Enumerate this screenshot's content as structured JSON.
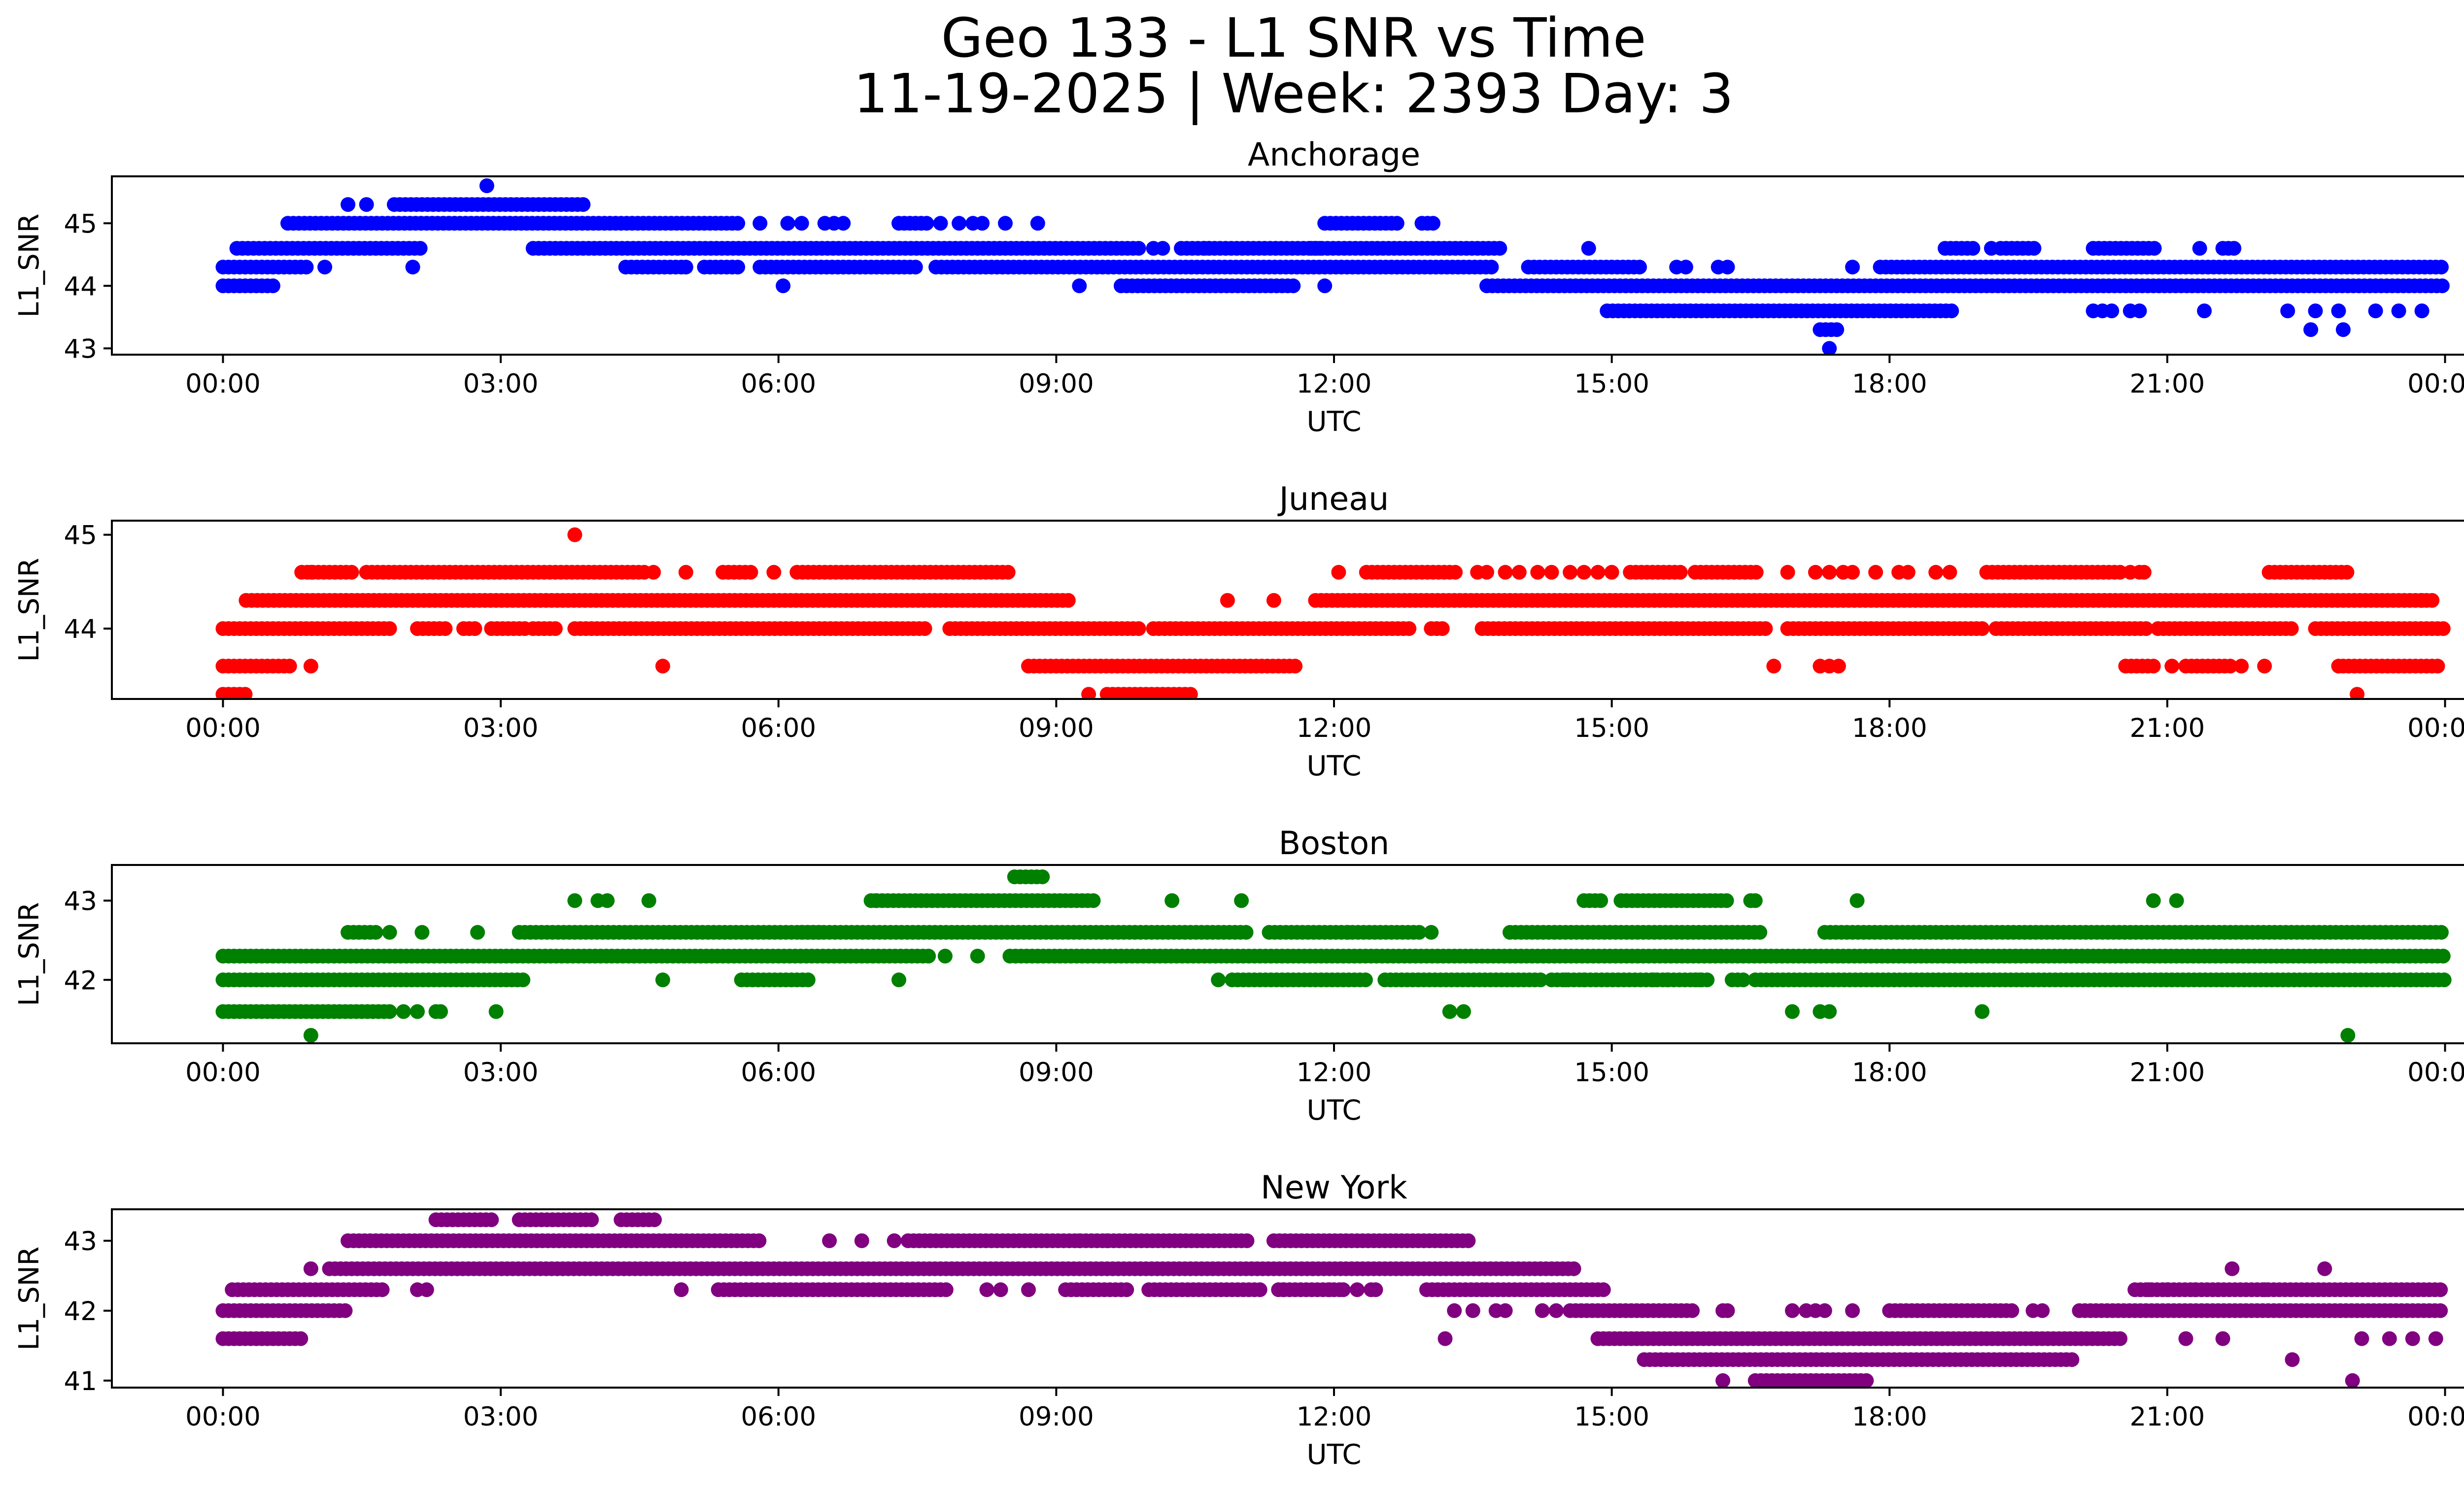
{
  "chart_data": {
    "type": "scatter",
    "title_line1": "Geo 133 - L1 SNR vs Time",
    "title_line2": "11-19-2025 | Week: 2393 Day: 3",
    "xlabel": "UTC",
    "ylabel": "L1_SNR",
    "x_ticks": [
      "00:00",
      "03:00",
      "06:00",
      "09:00",
      "12:00",
      "15:00",
      "18:00",
      "21:00",
      "00:00"
    ],
    "xlim_hours": [
      -1.2,
      25.2
    ],
    "panels": [
      {
        "name": "Anchorage",
        "color": "#0000ff",
        "ylim": [
          42.9,
          45.75
        ],
        "yticks": [
          43,
          44,
          45
        ],
        "series": [
          {
            "y": 44.0,
            "ranges": [
              [
                0.0,
                0.55
              ],
              [
                9.7,
                11.6
              ],
              [
                13.65,
                24.0
              ]
            ],
            "singles": [
              6.05,
              9.25,
              11.9
            ]
          },
          {
            "y": 44.3,
            "ranges": [
              [
                0.0,
                0.9
              ],
              [
                4.35,
                4.95
              ],
              [
                5.2,
                5.6
              ],
              [
                5.8,
                7.5
              ],
              [
                7.7,
                13.75
              ],
              [
                14.1,
                15.3
              ],
              [
                17.9,
                24.0
              ]
            ],
            "singles": [
              1.1,
              2.05,
              5.0,
              15.7,
              15.8,
              16.15,
              16.25,
              17.6
            ]
          },
          {
            "y": 44.6,
            "ranges": [
              [
                0.15,
                2.15
              ],
              [
                3.35,
                9.9
              ],
              [
                10.35,
                11.9
              ],
              [
                11.75,
                13.8
              ],
              [
                18.6,
                18.9
              ],
              [
                19.2,
                19.6
              ],
              [
                20.2,
                20.9
              ],
              [
                21.6,
                21.75
              ]
            ],
            "singles": [
              10.05,
              10.15,
              10.6,
              10.65,
              14.75,
              21.35,
              19.1
            ]
          },
          {
            "y": 45.0,
            "ranges": [
              [
                0.7,
                5.6
              ],
              [
                7.3,
                7.6
              ],
              [
                11.9,
                12.7
              ],
              [
                12.95,
                13.1
              ]
            ],
            "singles": [
              5.8,
              6.1,
              6.25,
              6.5,
              6.6,
              6.7,
              7.75,
              7.95,
              8.1,
              8.2,
              8.45,
              8.8
            ]
          },
          {
            "y": 45.3,
            "ranges": [
              [
                1.85,
                3.9
              ]
            ],
            "singles": [
              1.35,
              1.55
            ]
          },
          {
            "y": 43.6,
            "ranges": [
              [
                14.95,
                18.7
              ]
            ],
            "singles": [
              20.2,
              20.3,
              20.4,
              20.6,
              20.7,
              21.4,
              22.3,
              22.6,
              22.85,
              23.25,
              23.5,
              23.75
            ]
          },
          {
            "y": 43.3,
            "ranges": [
              [
                17.25,
                17.45
              ]
            ],
            "singles": [
              22.55,
              22.9
            ]
          },
          {
            "y": 43.0,
            "ranges": [],
            "singles": [
              17.35
            ]
          },
          {
            "y": 45.6,
            "ranges": [],
            "singles": [
              2.85
            ]
          }
        ]
      },
      {
        "name": "Juneau",
        "color": "#ff0000",
        "ylim": [
          43.25,
          45.15
        ],
        "yticks": [
          44,
          45
        ],
        "series": [
          {
            "y": 44.0,
            "ranges": [
              [
                0.0,
                1.8
              ],
              [
                2.1,
                2.45
              ],
              [
                2.6,
                2.75
              ],
              [
                2.9,
                3.3
              ],
              [
                3.35,
                3.6
              ],
              [
                3.8,
                7.6
              ],
              [
                7.85,
                9.9
              ],
              [
                10.05,
                12.85
              ],
              [
                13.05,
                13.2
              ],
              [
                13.6,
                16.7
              ],
              [
                16.9,
                19.05
              ],
              [
                19.15,
                20.8
              ],
              [
                20.9,
                22.35
              ],
              [
                22.6,
                24.0
              ]
            ],
            "singles": []
          },
          {
            "y": 44.3,
            "ranges": [
              [
                0.25,
                9.15
              ],
              [
                11.8,
                23.9
              ]
            ],
            "singles": [
              10.85,
              11.35,
              23.75
            ]
          },
          {
            "y": 44.6,
            "ranges": [
              [
                0.85,
                1.4
              ],
              [
                1.55,
                4.55
              ],
              [
                5.4,
                5.75
              ],
              [
                6.2,
                8.5
              ],
              [
                12.35,
                13.35
              ],
              [
                15.2,
                15.75
              ],
              [
                15.9,
                16.6
              ],
              [
                19.05,
                20.5
              ],
              [
                22.1,
                22.95
              ]
            ],
            "singles": [
              0.95,
              4.65,
              5.0,
              5.95,
              12.05,
              13.55,
              13.65,
              13.85,
              14.0,
              14.2,
              14.35,
              14.55,
              14.7,
              14.85,
              15.0,
              16.9,
              17.2,
              17.35,
              17.5,
              17.6,
              17.85,
              18.1,
              18.2,
              18.5,
              18.65,
              20.6,
              20.7,
              20.75
            ]
          },
          {
            "y": 43.6,
            "ranges": [
              [
                0.0,
                0.75
              ],
              [
                8.7,
                11.6
              ],
              [
                20.55,
                20.9
              ],
              [
                21.2,
                21.7
              ],
              [
                22.9,
                23.95
              ]
            ],
            "singles": [
              0.95,
              4.75,
              16.75,
              17.25,
              17.35,
              17.45,
              21.05,
              21.8,
              22.05,
              22.85
            ]
          },
          {
            "y": 43.3,
            "ranges": [
              [
                0.0,
                0.25
              ],
              [
                9.55,
                10.5
              ]
            ],
            "singles": [
              9.35,
              23.05
            ]
          },
          {
            "y": 45.0,
            "ranges": [],
            "singles": [
              3.8
            ]
          }
        ]
      },
      {
        "name": "Boston",
        "color": "#008000",
        "ylim": [
          41.2,
          43.45
        ],
        "yticks": [
          42,
          43
        ],
        "series": [
          {
            "y": 42.0,
            "ranges": [
              [
                0.0,
                3.25
              ],
              [
                5.6,
                6.35
              ],
              [
                10.9,
                12.35
              ],
              [
                12.55,
                14.25
              ],
              [
                14.35,
                16.05
              ],
              [
                16.3,
                16.45
              ],
              [
                16.55,
                24.0
              ]
            ],
            "singles": [
              4.75,
              7.3,
              10.75,
              14.5,
              14.7,
              15.45,
              15.6,
              15.9,
              15.95
            ]
          },
          {
            "y": 42.3,
            "ranges": [
              [
                0.0,
                7.65
              ],
              [
                8.5,
                24.0
              ]
            ],
            "singles": [
              7.8,
              8.15
            ]
          },
          {
            "y": 42.6,
            "ranges": [
              [
                1.35,
                1.7
              ],
              [
                3.2,
                6.45
              ],
              [
                6.25,
                11.05
              ],
              [
                11.3,
                12.95
              ],
              [
                13.9,
                16.65
              ],
              [
                17.3,
                24.0
              ]
            ],
            "singles": [
              1.8,
              2.15,
              2.75,
              12.15,
              13.05
            ]
          },
          {
            "y": 41.6,
            "ranges": [
              [
                0.0,
                1.85
              ]
            ],
            "singles": [
              1.95,
              2.1,
              2.3,
              2.35,
              2.95,
              13.25,
              13.4,
              16.95,
              17.25,
              17.35,
              19.0
            ]
          },
          {
            "y": 43.0,
            "ranges": [
              [
                7.0,
                9.45
              ],
              [
                14.7,
                14.9
              ],
              [
                15.1,
                16.25
              ]
            ],
            "singles": [
              3.8,
              4.05,
              4.15,
              4.6,
              7.05,
              10.25,
              11.0,
              16.5,
              16.55,
              17.65,
              20.85,
              21.1
            ]
          },
          {
            "y": 43.3,
            "ranges": [
              [
                8.55,
                8.85
              ]
            ],
            "singles": []
          },
          {
            "y": 41.3,
            "ranges": [],
            "singles": [
              0.95,
              22.95
            ]
          }
        ]
      },
      {
        "name": "New York",
        "color": "#800080",
        "ylim": [
          40.9,
          43.45
        ],
        "yticks": [
          41,
          42,
          43
        ],
        "series": [
          {
            "y": 42.0,
            "ranges": [
              [
                0.0,
                1.35
              ],
              [
                14.55,
                15.9
              ],
              [
                18.0,
                19.35
              ],
              [
                20.05,
                24.0
              ]
            ],
            "singles": [
              13.3,
              13.5,
              13.75,
              13.85,
              14.25,
              14.4,
              16.2,
              16.25,
              16.95,
              17.1,
              17.2,
              17.3,
              17.6,
              19.55,
              19.65
            ]
          },
          {
            "y": 42.3,
            "ranges": [
              [
                0.1,
                1.75
              ],
              [
                5.35,
                7.85
              ],
              [
                9.1,
                9.8
              ],
              [
                10.0,
                11.25
              ],
              [
                11.4,
                12.1
              ],
              [
                13.0,
                13.6
              ],
              [
                13.65,
                14.95
              ],
              [
                20.65,
                24.0
              ]
            ],
            "singles": [
              2.1,
              2.2,
              4.95,
              8.25,
              8.4,
              8.7,
              11.45,
              11.95,
              12.1,
              12.25,
              12.4,
              12.45,
              20.8,
              21.0,
              21.3,
              21.55,
              22.05
            ]
          },
          {
            "y": 42.6,
            "ranges": [
              [
                1.15,
                14.6
              ]
            ],
            "singles": [
              0.95,
              21.7,
              22.7
            ]
          },
          {
            "y": 43.0,
            "ranges": [
              [
                1.35,
                5.8
              ],
              [
                7.4,
                11.1
              ],
              [
                11.35,
                13.5
              ]
            ],
            "singles": [
              6.55,
              6.9,
              7.25,
              9.25,
              9.55
            ]
          },
          {
            "y": 43.3,
            "ranges": [
              [
                2.3,
                2.9
              ],
              [
                3.2,
                4.0
              ],
              [
                4.3,
                4.7
              ]
            ],
            "singles": []
          },
          {
            "y": 41.6,
            "ranges": [
              [
                0.0,
                0.85
              ],
              [
                14.85,
                20.5
              ]
            ],
            "singles": [
              13.2,
              21.2,
              21.6,
              23.1,
              23.4,
              23.65,
              23.9
            ]
          },
          {
            "y": 41.3,
            "ranges": [
              [
                15.35,
                20.0
              ]
            ],
            "singles": [
              22.35
            ]
          },
          {
            "y": 41.0,
            "ranges": [
              [
                16.55,
                17.8
              ]
            ],
            "singles": [
              16.2,
              23.0
            ]
          }
        ]
      }
    ]
  }
}
